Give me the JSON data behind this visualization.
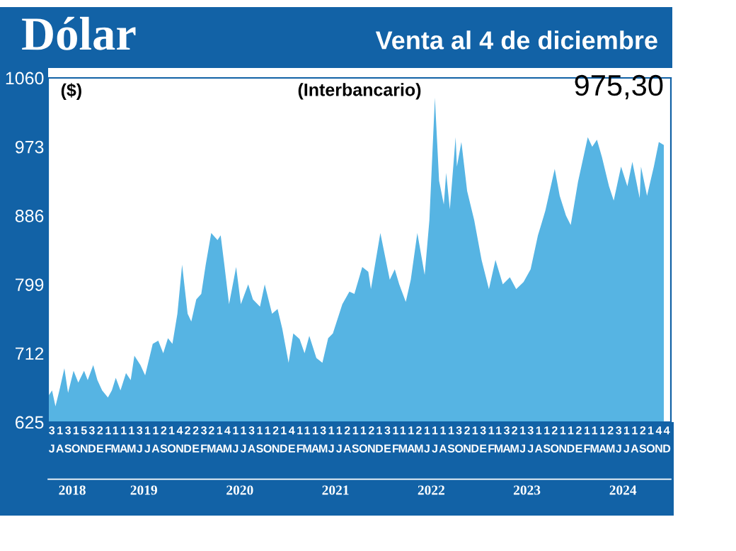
{
  "chart_data": {
    "type": "area",
    "title": "Dólar",
    "subtitle": "Venta al 4 de diciembre",
    "ylabel": "($)",
    "annotations": [
      "(Interbancario)",
      {
        "text": "975,30",
        "x": "2024-12-04",
        "y": 975.3
      }
    ],
    "series": [
      {
        "color": "#56b4e3",
        "x": [
          "2018-07-04",
          "2018-07-16",
          "2018-07-29",
          "2018-08-13",
          "2018-09-01",
          "2018-09-15",
          "2018-10-06",
          "2018-10-24",
          "2018-11-15",
          "2018-11-29",
          "2018-12-20",
          "2019-01-05",
          "2019-01-23",
          "2019-02-14",
          "2019-03-01",
          "2019-03-16",
          "2019-04-03",
          "2019-04-24",
          "2019-05-12",
          "2019-05-26",
          "2019-06-18",
          "2019-07-06",
          "2019-08-04",
          "2019-08-25",
          "2019-09-13",
          "2019-10-01",
          "2019-10-18",
          "2019-11-06",
          "2019-11-24",
          "2019-12-15",
          "2019-12-29",
          "2020-01-17",
          "2020-02-05",
          "2020-02-22",
          "2020-03-14",
          "2020-04-07",
          "2020-04-19",
          "2020-05-03",
          "2020-05-21",
          "2020-06-17",
          "2020-07-05",
          "2020-08-02",
          "2020-08-20",
          "2020-09-16",
          "2020-10-04",
          "2020-11-01",
          "2020-11-22",
          "2020-12-10",
          "2021-01-03",
          "2021-01-21",
          "2021-02-14",
          "2021-03-05",
          "2021-03-23",
          "2021-04-19",
          "2021-05-12",
          "2021-06-03",
          "2021-06-21",
          "2021-07-27",
          "2021-08-23",
          "2021-09-11",
          "2021-10-11",
          "2021-11-03",
          "2021-11-13",
          "2021-12-19",
          "2022-01-24",
          "2022-02-12",
          "2022-03-01",
          "2022-03-26",
          "2022-04-14",
          "2022-05-09",
          "2022-06-06",
          "2022-06-24",
          "2022-07-15",
          "2022-07-31",
          "2022-08-18",
          "2022-08-27",
          "2022-09-10",
          "2022-10-02",
          "2022-10-07",
          "2022-10-24",
          "2022-11-15",
          "2022-12-12",
          "2023-01-09",
          "2023-02-06",
          "2023-03-03",
          "2023-03-31",
          "2023-04-27",
          "2023-05-21",
          "2023-06-18",
          "2023-07-15",
          "2023-08-12",
          "2023-09-09",
          "2023-10-15",
          "2023-11-03",
          "2023-11-27",
          "2023-12-15",
          "2024-01-12",
          "2024-02-18",
          "2024-03-06",
          "2024-03-24",
          "2024-04-12",
          "2024-05-09",
          "2024-05-27",
          "2024-06-24",
          "2024-07-18",
          "2024-08-06",
          "2024-09-03",
          "2024-09-08",
          "2024-10-01",
          "2024-10-27",
          "2024-11-15",
          "2024-12-04"
        ],
        "values": [
          659,
          665,
          645,
          665,
          693,
          662,
          690,
          675,
          690,
          678,
          697,
          678,
          665,
          656,
          665,
          681,
          665,
          687,
          678,
          709,
          697,
          684,
          724,
          728,
          712,
          731,
          724,
          762,
          824,
          762,
          752,
          780,
          787,
          824,
          864,
          855,
          861,
          824,
          774,
          821,
          774,
          799,
          780,
          771,
          799,
          762,
          768,
          743,
          700,
          737,
          730,
          712,
          734,
          706,
          700,
          731,
          737,
          774,
          790,
          787,
          821,
          815,
          793,
          864,
          805,
          818,
          799,
          777,
          805,
          864,
          811,
          880,
          1035,
          930,
          900,
          940,
          894,
          985,
          948,
          979,
          917,
          880,
          830,
          793,
          830,
          799,
          808,
          793,
          802,
          818,
          861,
          892,
          945,
          911,
          886,
          874,
          929,
          985,
          973,
          982,
          960,
          923,
          905,
          948,
          923,
          954,
          908,
          948,
          911,
          948,
          979,
          975.3
        ]
      }
    ],
    "xlim": [
      "2018-07-01",
      "2024-12-31"
    ],
    "ylim": [
      625,
      1060
    ],
    "yticks": [
      625,
      712,
      799,
      886,
      973,
      1060
    ],
    "xticks": [
      {
        "value": "2018-07-15",
        "label": "3\nJ"
      },
      {
        "value": "2018-08-15",
        "label": "1\nA"
      },
      {
        "value": "2018-09-15",
        "label": "3\nS"
      },
      {
        "value": "2018-10-15",
        "label": "1\nO"
      },
      {
        "value": "2018-11-15",
        "label": "5\nN"
      },
      {
        "value": "2018-12-15",
        "label": "3\nD"
      },
      {
        "value": "2019-01-15",
        "label": "2\nE"
      },
      {
        "value": "2019-02-15",
        "label": "1\nF"
      },
      {
        "value": "2019-03-15",
        "label": "1\nM"
      },
      {
        "value": "2019-04-15",
        "label": "1\nA"
      },
      {
        "value": "2019-05-15",
        "label": "1\nM"
      },
      {
        "value": "2019-06-15",
        "label": "3\nJ"
      },
      {
        "value": "2019-07-15",
        "label": "1\nJ"
      },
      {
        "value": "2019-08-15",
        "label": "1\nA"
      },
      {
        "value": "2019-09-15",
        "label": "2\nS"
      },
      {
        "value": "2019-10-15",
        "label": "1\nO"
      },
      {
        "value": "2019-11-15",
        "label": "4\nN"
      },
      {
        "value": "2019-12-15",
        "label": "2\nD"
      },
      {
        "value": "2020-01-15",
        "label": "2\nE"
      },
      {
        "value": "2020-02-15",
        "label": "3\nF"
      },
      {
        "value": "2020-03-15",
        "label": "2\nM"
      },
      {
        "value": "2020-04-15",
        "label": "1\nA"
      },
      {
        "value": "2020-05-15",
        "label": "4\nM"
      },
      {
        "value": "2020-06-15",
        "label": "1\nJ"
      },
      {
        "value": "2020-07-15",
        "label": "1\nJ"
      },
      {
        "value": "2020-08-15",
        "label": "3\nA"
      },
      {
        "value": "2020-09-15",
        "label": "1\nS"
      },
      {
        "value": "2020-10-15",
        "label": "1\nO"
      },
      {
        "value": "2020-11-15",
        "label": "2\nN"
      },
      {
        "value": "2020-12-15",
        "label": "1\nD"
      },
      {
        "value": "2021-01-15",
        "label": "4\nE"
      },
      {
        "value": "2021-02-15",
        "label": "1\nF"
      },
      {
        "value": "2021-03-15",
        "label": "1\nM"
      },
      {
        "value": "2021-04-15",
        "label": "1\nA"
      },
      {
        "value": "2021-05-15",
        "label": "3\nM"
      },
      {
        "value": "2021-06-15",
        "label": "1\nJ"
      },
      {
        "value": "2021-07-15",
        "label": "1\nJ"
      },
      {
        "value": "2021-08-15",
        "label": "2\nA"
      },
      {
        "value": "2021-09-15",
        "label": "1\nS"
      },
      {
        "value": "2021-10-15",
        "label": "1\nO"
      },
      {
        "value": "2021-11-15",
        "label": "2\nN"
      },
      {
        "value": "2021-12-15",
        "label": "1\nD"
      },
      {
        "value": "2022-01-15",
        "label": "3\nE"
      },
      {
        "value": "2022-02-15",
        "label": "1\nF"
      },
      {
        "value": "2022-03-15",
        "label": "1\nM"
      },
      {
        "value": "2022-04-15",
        "label": "1\nA"
      },
      {
        "value": "2022-05-15",
        "label": "2\nM"
      },
      {
        "value": "2022-06-15",
        "label": "1\nJ"
      },
      {
        "value": "2022-07-15",
        "label": "1\nJ"
      },
      {
        "value": "2022-08-15",
        "label": "1\nA"
      },
      {
        "value": "2022-09-15",
        "label": "1\nS"
      },
      {
        "value": "2022-10-15",
        "label": "3\nO"
      },
      {
        "value": "2022-11-15",
        "label": "2\nN"
      },
      {
        "value": "2022-12-15",
        "label": "1\nD"
      },
      {
        "value": "2023-01-15",
        "label": "3\nE"
      },
      {
        "value": "2023-02-15",
        "label": "1\nF"
      },
      {
        "value": "2023-03-15",
        "label": "1\nM"
      },
      {
        "value": "2023-04-15",
        "label": "3\nA"
      },
      {
        "value": "2023-05-15",
        "label": "2\nM"
      },
      {
        "value": "2023-06-15",
        "label": "1\nJ"
      },
      {
        "value": "2023-07-15",
        "label": "3\nJ"
      },
      {
        "value": "2023-08-15",
        "label": "1\nA"
      },
      {
        "value": "2023-09-15",
        "label": "1\nS"
      },
      {
        "value": "2023-10-15",
        "label": "2\nO"
      },
      {
        "value": "2023-11-15",
        "label": "1\nN"
      },
      {
        "value": "2023-12-15",
        "label": "1\nD"
      },
      {
        "value": "2024-01-15",
        "label": "2\nE"
      },
      {
        "value": "2024-02-15",
        "label": "1\nF"
      },
      {
        "value": "2024-03-15",
        "label": "1\nM"
      },
      {
        "value": "2024-04-15",
        "label": "1\nA"
      },
      {
        "value": "2024-05-15",
        "label": "2\nM"
      },
      {
        "value": "2024-06-15",
        "label": "3\nJ"
      },
      {
        "value": "2024-07-15",
        "label": "1\nJ"
      },
      {
        "value": "2024-08-15",
        "label": "1\nA"
      },
      {
        "value": "2024-09-15",
        "label": "2\nS"
      },
      {
        "value": "2024-10-15",
        "label": "1\nO"
      },
      {
        "value": "2024-11-15",
        "label": "4\nN"
      },
      {
        "value": "2024-12-15",
        "label": "4\nD"
      }
    ],
    "x2lim": [
      "2018-07-01",
      "2024-12-31"
    ],
    "x2ticks": [
      {
        "value": "2018-10-01",
        "label": "2018"
      },
      {
        "value": "2019-07-01",
        "label": "2019"
      },
      {
        "value": "2020-07-01",
        "label": "2020"
      },
      {
        "value": "2021-07-01",
        "label": "2021"
      },
      {
        "value": "2022-07-01",
        "label": "2022"
      },
      {
        "value": "2023-07-01",
        "label": "2023"
      },
      {
        "value": "2024-07-01",
        "label": "2024"
      }
    ],
    "grid": false
  }
}
